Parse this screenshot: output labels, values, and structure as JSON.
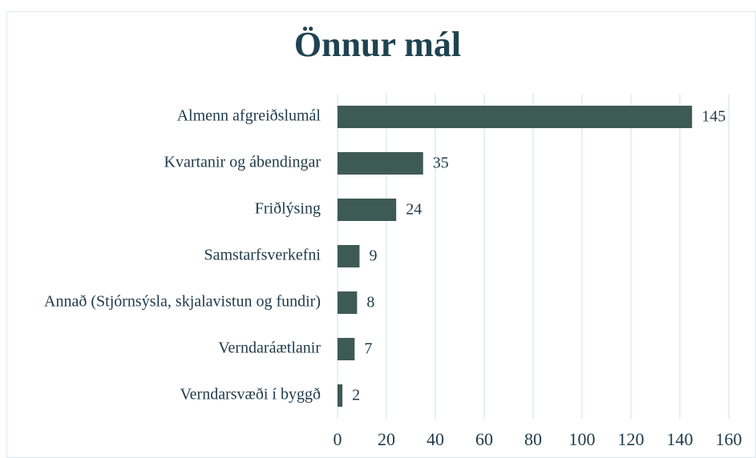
{
  "chart_data": {
    "type": "bar",
    "orientation": "horizontal",
    "title": "Önnur mál",
    "categories": [
      "Almenn afgreiðslumál",
      "Kvartanir og ábendingar",
      "Friðlýsing",
      "Samstarfsverkefni",
      "Annað (Stjórnsýsla, skjalavistun og fundir)",
      "Verndaráætlanir",
      "Verndarsvæði í byggð"
    ],
    "values": [
      145,
      35,
      24,
      9,
      8,
      7,
      2
    ],
    "color": "#3e5a55",
    "xlim": [
      0,
      160
    ],
    "xticks": [
      0,
      20,
      40,
      60,
      80,
      100,
      120,
      140,
      160
    ],
    "grid": true
  }
}
